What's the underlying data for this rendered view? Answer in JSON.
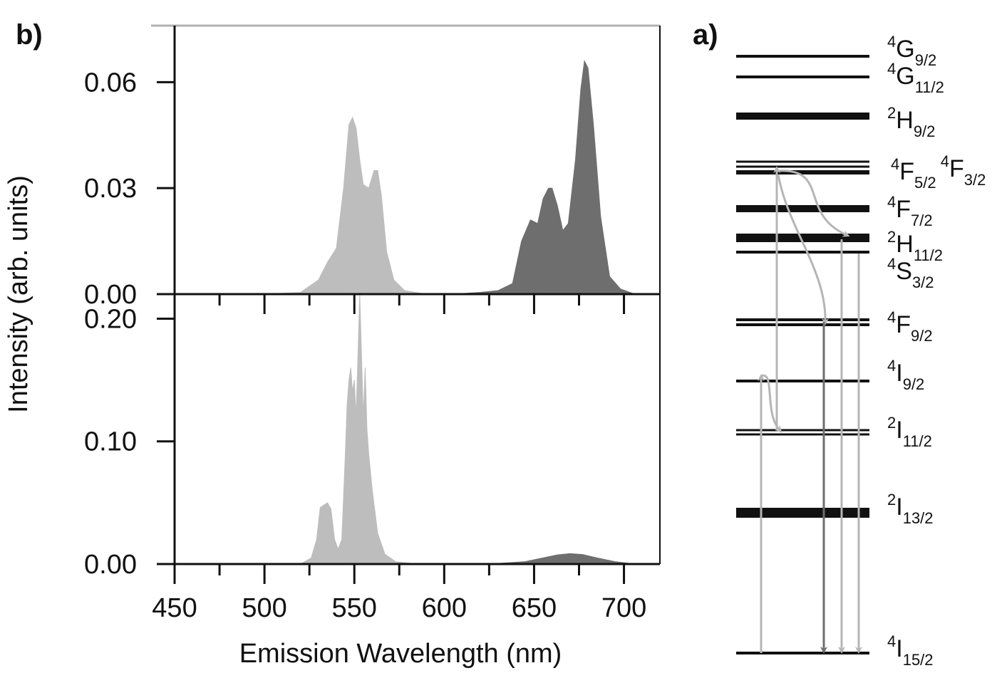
{
  "chart_data": [
    {
      "type": "area",
      "panel_label": "b)",
      "xlabel": "Emission Wavelength (nm)",
      "ylabel": "Intensity (arb. units)",
      "xlim": [
        450,
        720
      ],
      "x_ticks": [
        450,
        500,
        550,
        600,
        650,
        700
      ],
      "x_tick_labels": [
        "450",
        "500",
        "550",
        "600",
        "650",
        "700"
      ],
      "subplots": [
        {
          "name": "top",
          "ylim": [
            0,
            0.076
          ],
          "y_ticks": [
            0.0,
            0.03,
            0.06
          ],
          "y_tick_labels": [
            "0.00",
            "0.03",
            "0.06"
          ],
          "series": [
            {
              "color": "#bdbdbd",
              "x": [
                500,
                520,
                530,
                535,
                540,
                544,
                547,
                549,
                551,
                553,
                555,
                558,
                561,
                563,
                565,
                568,
                572,
                578,
                590
              ],
              "y": [
                0.0,
                0.0005,
                0.004,
                0.009,
                0.013,
                0.03,
                0.048,
                0.05,
                0.047,
                0.038,
                0.031,
                0.03,
                0.035,
                0.035,
                0.028,
                0.012,
                0.004,
                0.001,
                0.0
              ]
            },
            {
              "color": "#6e6e6e",
              "x": [
                605,
                620,
                630,
                638,
                643,
                648,
                652,
                655,
                658,
                660,
                663,
                666,
                669,
                673,
                676,
                678,
                680,
                683,
                687,
                692,
                698,
                706
              ],
              "y": [
                0.0,
                0.0005,
                0.001,
                0.003,
                0.015,
                0.021,
                0.02,
                0.027,
                0.03,
                0.03,
                0.025,
                0.018,
                0.02,
                0.038,
                0.058,
                0.066,
                0.064,
                0.048,
                0.022,
                0.005,
                0.0015,
                0.0
              ]
            }
          ]
        },
        {
          "name": "bottom",
          "ylim": [
            0,
            0.22
          ],
          "y_ticks": [
            0.0,
            0.1,
            0.2
          ],
          "y_tick_labels": [
            "0.00",
            "0.10",
            "0.20"
          ],
          "series": [
            {
              "color": "#bdbdbd",
              "x": [
                520,
                526,
                529,
                531,
                533,
                535,
                537,
                539,
                541,
                543,
                545,
                546,
                547,
                548,
                549,
                550,
                551,
                552,
                553,
                554,
                555,
                556,
                557,
                558,
                560,
                563,
                567,
                573,
                585
              ],
              "y": [
                0.0,
                0.005,
                0.02,
                0.046,
                0.048,
                0.05,
                0.045,
                0.02,
                0.012,
                0.02,
                0.09,
                0.13,
                0.15,
                0.16,
                0.14,
                0.15,
                0.12,
                0.17,
                0.22,
                0.17,
                0.12,
                0.16,
                0.11,
                0.09,
                0.06,
                0.025,
                0.008,
                0.002,
                0.0
              ]
            },
            {
              "color": "#6e6e6e",
              "x": [
                605,
                630,
                645,
                655,
                663,
                670,
                677,
                685,
                695,
                706
              ],
              "y": [
                0.0,
                0.0005,
                0.002,
                0.005,
                0.0075,
                0.0085,
                0.0078,
                0.005,
                0.002,
                0.0
              ]
            }
          ]
        }
      ]
    },
    {
      "type": "diagram",
      "panel_label": "a)",
      "levels": [
        {
          "term": "4G",
          "sup": "4",
          "base": "G",
          "sub": "9/2"
        },
        {
          "term": "4G",
          "sup": "4",
          "base": "G",
          "sub": "11/2"
        },
        {
          "term": "2H",
          "sup": "2",
          "base": "H",
          "sub": "9/2"
        },
        {
          "term": "4F",
          "sup": "4",
          "base": "F",
          "sub": "5/2",
          "sup2": "4",
          "base2": "F",
          "sub2": "3/2"
        },
        {
          "term": "4F",
          "sup": "4",
          "base": "F",
          "sub": "7/2"
        },
        {
          "term": "2H",
          "sup": "2",
          "base": "H",
          "sub": "11/2"
        },
        {
          "term": "4S",
          "sup": "4",
          "base": "S",
          "sub": "3/2"
        },
        {
          "term": "4F",
          "sup": "4",
          "base": "F",
          "sub": "9/2"
        },
        {
          "term": "4I",
          "sup": "4",
          "base": "I",
          "sub": "9/2"
        },
        {
          "term": "2I",
          "sup": "2",
          "base": "I",
          "sub": "11/2"
        },
        {
          "term": "2I",
          "sup": "2",
          "base": "I",
          "sub": "13/2"
        },
        {
          "term": "4I",
          "sup": "4",
          "base": "I",
          "sub": "15/2"
        }
      ],
      "colors": {
        "light_arrow": "#b5b5b5",
        "dark_arrow": "#6e6e6e",
        "level": "#111111"
      }
    }
  ]
}
